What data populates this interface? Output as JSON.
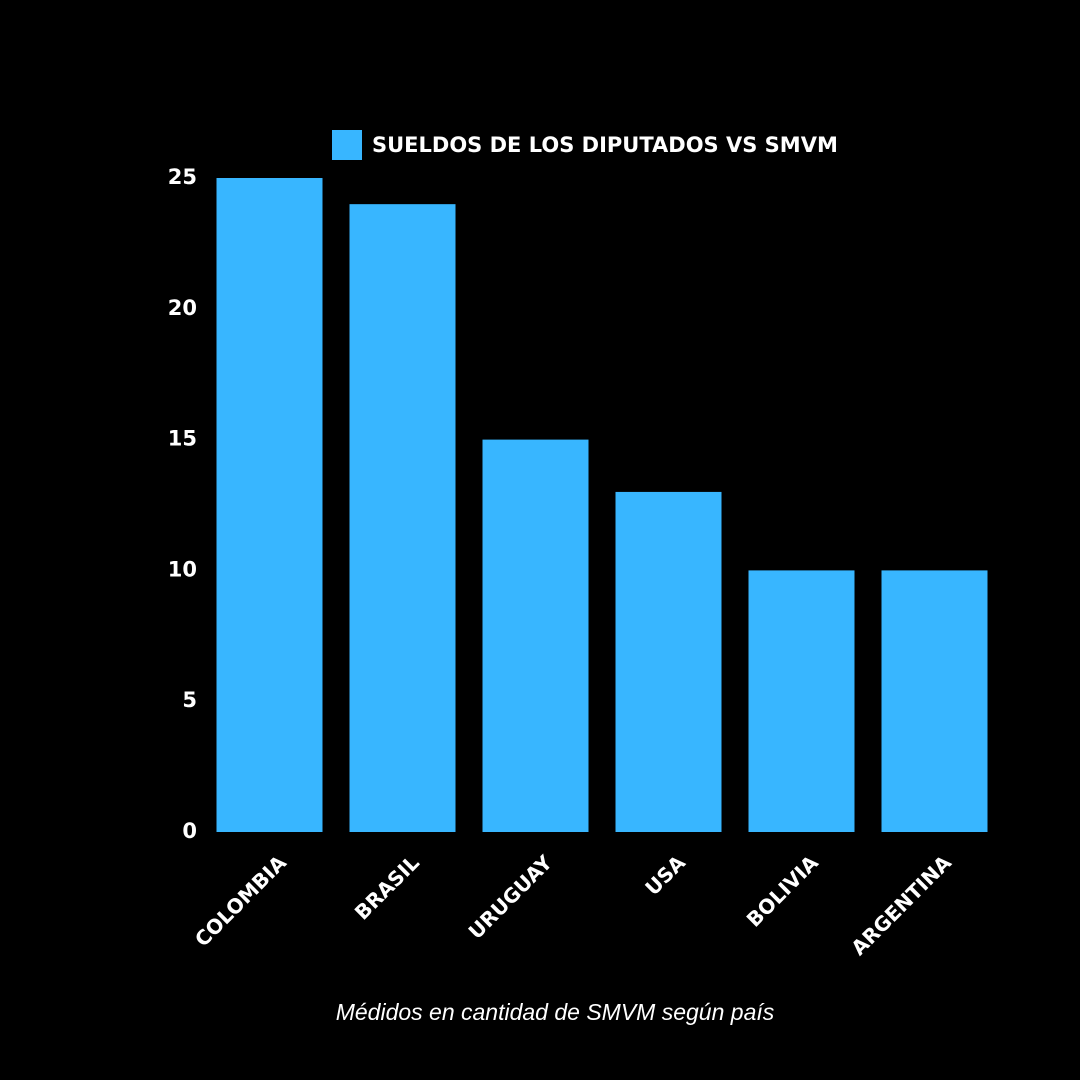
{
  "chart_data": {
    "type": "bar",
    "categories": [
      "COLOMBIA",
      "BRASIL",
      "URUGUAY",
      "USA",
      "BOLIVIA",
      "ARGENTINA"
    ],
    "series": [
      {
        "name": "SUELDOS DE LOS DIPUTADOS VS SMVM",
        "color": "#38b6ff",
        "values": [
          25,
          24,
          15,
          13,
          10,
          10
        ]
      }
    ],
    "x_label": "Médidos en cantidad de SMVM según país",
    "ylim": [
      0,
      25
    ],
    "yticks": [
      0,
      5,
      10,
      15,
      20,
      25
    ],
    "grid": false,
    "legend": "top"
  }
}
